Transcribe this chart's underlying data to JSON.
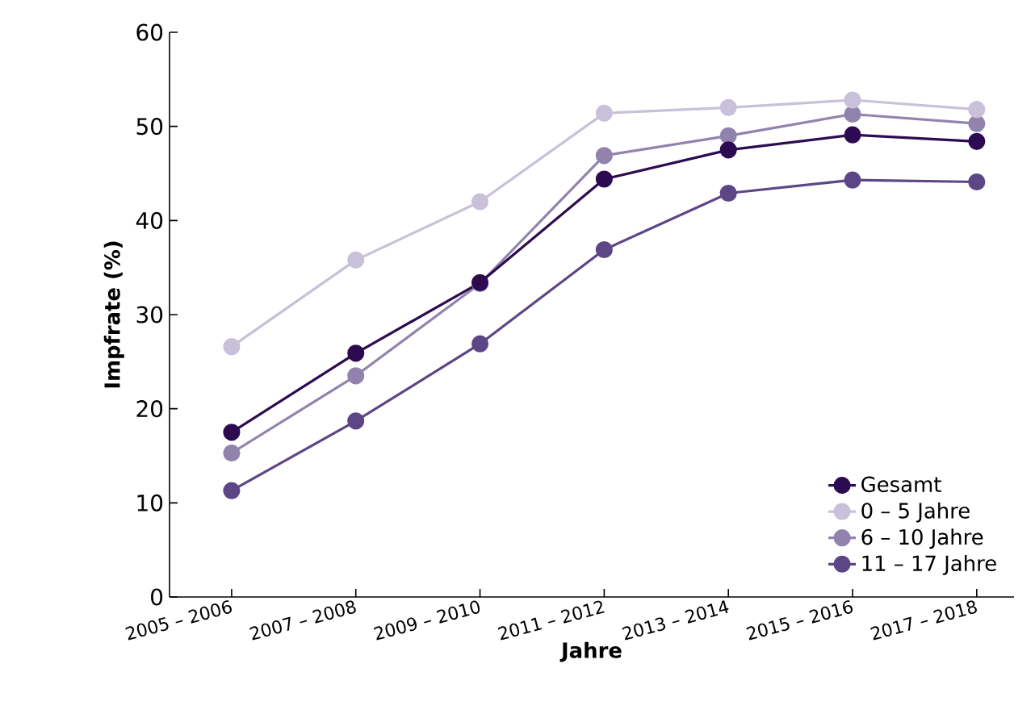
{
  "chart_data": {
    "type": "line",
    "xlabel": "Jahre",
    "ylabel": "Impfrate (%)",
    "categories": [
      "2005 – 2006",
      "2007 – 2008",
      "2009 – 2010",
      "2011 – 2012",
      "2013 – 2014",
      "2015 – 2016",
      "2017 – 2018"
    ],
    "series": [
      {
        "name": "Gesamt",
        "color": "#2d0b50",
        "values": [
          17.5,
          25.9,
          33.4,
          44.4,
          47.5,
          49.1,
          48.4
        ]
      },
      {
        "name": "0 – 5 Jahre",
        "color": "#c9c0d9",
        "values": [
          26.6,
          35.8,
          42.0,
          51.4,
          52.0,
          52.8,
          51.8
        ]
      },
      {
        "name": "6 – 10 Jahre",
        "color": "#9283ad",
        "values": [
          15.3,
          23.5,
          33.3,
          46.9,
          49.0,
          51.3,
          50.3
        ]
      },
      {
        "name": "11 – 17 Jahre",
        "color": "#5d4686",
        "values": [
          11.3,
          18.7,
          26.9,
          36.9,
          42.9,
          44.3,
          44.1
        ]
      }
    ],
    "ylim": [
      0,
      60
    ],
    "yticks": [
      0,
      10,
      20,
      30,
      40,
      50,
      60
    ],
    "grid": false,
    "legend": "bottom right",
    "marker": "circle",
    "line_style": "solid"
  }
}
